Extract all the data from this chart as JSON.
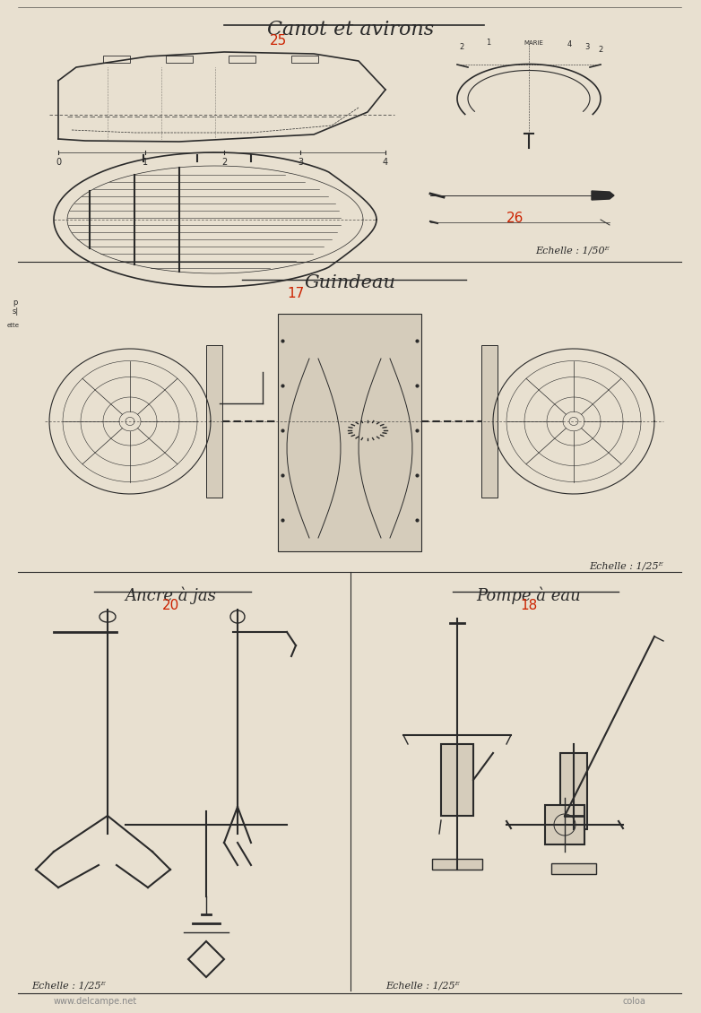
{
  "bg_color": "#e8e0d0",
  "line_color": "#2a2a2a",
  "red_color": "#cc2200",
  "title1": "Canot et avirons",
  "title2": "Guindeau",
  "title3": "Ancre à jas",
  "title4": "Pompe à eau",
  "num25": "25",
  "num26": "26",
  "num17": "17",
  "num20": "20",
  "num18": "18",
  "echelle_50": "Echelle : 1/50ᴱ",
  "echelle_25a": "Echelle : 1/25ᴱ",
  "echelle_25b": "Echelle : 1/25ᴱ",
  "echelle_25c": "Echelle : 1/25ᴱ",
  "watermark1": "www.delcampe.net",
  "watermark2": "coloa"
}
